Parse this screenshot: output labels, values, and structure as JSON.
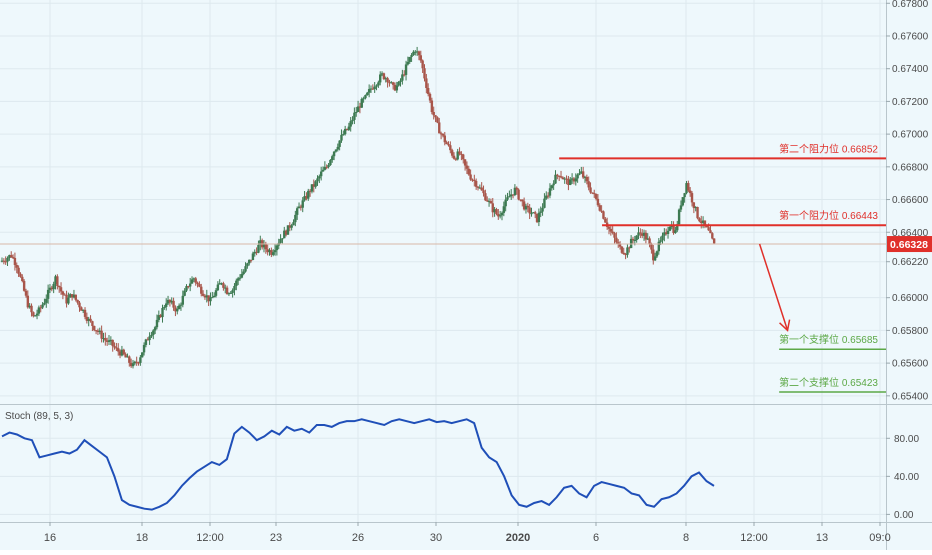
{
  "colors": {
    "background": "#eef8fc",
    "grid": "#dde9ee",
    "axis_text": "#4a4a4a",
    "candle_up": "#3d7a52",
    "candle_down": "#a8554a",
    "resistance": "#e0302a",
    "support": "#5ca846",
    "stoch_line": "#1f4fb8",
    "price_tag": "#e0302a",
    "arrow": "#e0302a"
  },
  "chart_data": [
    {
      "type": "candlestick",
      "pair_label": "",
      "y_ticks": [
        "0.67800",
        "0.67600",
        "0.67400",
        "0.67200",
        "0.67000",
        "0.66800",
        "0.66600",
        "0.66400",
        "0.66220",
        "0.66000",
        "0.65800",
        "0.65600",
        "0.65400"
      ],
      "y_tick_values": [
        0.678,
        0.676,
        0.674,
        0.672,
        0.67,
        0.668,
        0.666,
        0.664,
        0.6622,
        0.66,
        0.658,
        0.656,
        0.654
      ],
      "ylim": [
        0.6535,
        0.6782
      ],
      "x_ticks": [
        "16",
        "18",
        "12:00",
        "23",
        "26",
        "30",
        "2020",
        "6",
        "8",
        "12:00",
        "13",
        "09:0"
      ],
      "current_price": "0.66328",
      "current_price_value": 0.66328,
      "price_path": [
        0.6622,
        0.6624,
        0.6626,
        0.662,
        0.6608,
        0.6596,
        0.6588,
        0.6592,
        0.6598,
        0.6605,
        0.6612,
        0.6604,
        0.6598,
        0.6602,
        0.6597,
        0.6592,
        0.6586,
        0.6582,
        0.6578,
        0.6574,
        0.6572,
        0.6568,
        0.6566,
        0.6562,
        0.6558,
        0.6562,
        0.657,
        0.6578,
        0.6582,
        0.659,
        0.6598,
        0.6596,
        0.6592,
        0.66,
        0.6608,
        0.6612,
        0.6606,
        0.6602,
        0.6598,
        0.6604,
        0.661,
        0.6604,
        0.6605,
        0.6612,
        0.6616,
        0.6622,
        0.6628,
        0.6633,
        0.663,
        0.6628,
        0.6633,
        0.6638,
        0.6642,
        0.6648,
        0.6655,
        0.666,
        0.6666,
        0.667,
        0.6676,
        0.668,
        0.6688,
        0.6694,
        0.67,
        0.6704,
        0.6712,
        0.6718,
        0.6722,
        0.6728,
        0.6732,
        0.6736,
        0.6734,
        0.6728,
        0.673,
        0.6738,
        0.6746,
        0.6752,
        0.6745,
        0.673,
        0.6715,
        0.6705,
        0.6698,
        0.6692,
        0.6686,
        0.6688,
        0.668,
        0.6674,
        0.667,
        0.6665,
        0.666,
        0.6654,
        0.665,
        0.6656,
        0.6662,
        0.6666,
        0.666,
        0.6654,
        0.6652,
        0.6648,
        0.6656,
        0.6664,
        0.6672,
        0.6676,
        0.6672,
        0.667,
        0.6674,
        0.6676,
        0.667,
        0.6664,
        0.6658,
        0.665,
        0.6642,
        0.6636,
        0.663,
        0.6628,
        0.6634,
        0.6638,
        0.664,
        0.6635,
        0.6625,
        0.6632,
        0.6638,
        0.6645,
        0.664,
        0.6658,
        0.667,
        0.666,
        0.665,
        0.6645,
        0.664,
        0.6632
      ],
      "levels": [
        {
          "label": "第二个阻力位 0.66852",
          "value": 0.66852,
          "kind": "resistance",
          "x_from": 0.6
        },
        {
          "label": "第一个阻力位 0.66443",
          "value": 0.66443,
          "kind": "resistance",
          "x_from": 0.646
        },
        {
          "label": "第一个支撑位 0.65685",
          "value": 0.65685,
          "kind": "support",
          "x_from": 0.836
        },
        {
          "label": "第二个支撑位 0.65423",
          "value": 0.65423,
          "kind": "support",
          "x_from": 0.836
        }
      ],
      "forecast_arrow": {
        "from": [
          0.815,
          0.66328
        ],
        "to": [
          0.845,
          0.658
        ]
      }
    },
    {
      "type": "line",
      "indicator_label": "Stoch (89, 5, 3)",
      "y_ticks": [
        "80.00",
        "40.00",
        "0.00"
      ],
      "y_tick_values": [
        80,
        40,
        0
      ],
      "ylim": [
        -8,
        115
      ],
      "series": [
        {
          "name": "Stoch (89, 5, 3)",
          "values": [
            82,
            86,
            84,
            80,
            78,
            60,
            62,
            64,
            66,
            64,
            68,
            78,
            72,
            66,
            60,
            40,
            15,
            10,
            8,
            6,
            5,
            8,
            12,
            20,
            30,
            38,
            45,
            50,
            55,
            52,
            58,
            85,
            92,
            86,
            78,
            82,
            88,
            84,
            92,
            88,
            90,
            86,
            94,
            94,
            92,
            96,
            98,
            98,
            100,
            98,
            96,
            94,
            98,
            100,
            98,
            96,
            98,
            100,
            97,
            98,
            96,
            98,
            100,
            96,
            70,
            60,
            55,
            40,
            20,
            10,
            8,
            12,
            14,
            10,
            18,
            28,
            30,
            22,
            18,
            30,
            34,
            32,
            30,
            28,
            22,
            20,
            10,
            8,
            16,
            18,
            22,
            30,
            40,
            44,
            35,
            30
          ]
        }
      ]
    }
  ]
}
